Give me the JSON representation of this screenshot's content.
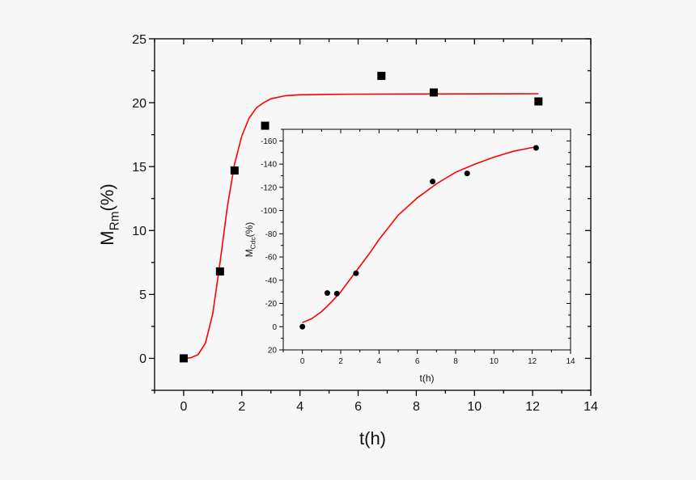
{
  "chart_data": [
    {
      "type": "scatter",
      "xlabel": "t(h)",
      "ylabel_main": "M",
      "ylabel_sub": "Rm",
      "ylabel_suffix": "(%)",
      "xlim": [
        -1,
        14
      ],
      "ylim": [
        -2.5,
        25
      ],
      "xticks": [
        0,
        2,
        4,
        6,
        8,
        10,
        12,
        14
      ],
      "yticks": [
        0,
        5,
        10,
        15,
        20,
        25
      ],
      "marker": "square",
      "points": {
        "x": [
          0,
          1.25,
          1.75,
          2.8,
          6.8,
          8.6,
          12.2
        ],
        "y": [
          0,
          6.8,
          14.7,
          18.2,
          22.1,
          20.8,
          20.1
        ]
      },
      "fit": {
        "x": [
          0,
          0.25,
          0.5,
          0.75,
          1,
          1.25,
          1.5,
          1.75,
          2,
          2.25,
          2.5,
          2.75,
          3,
          3.5,
          4,
          5,
          6,
          8,
          10,
          12.2
        ],
        "y": [
          0,
          0.05,
          0.3,
          1.2,
          3.5,
          7.5,
          11.8,
          15.2,
          17.4,
          18.8,
          19.6,
          20.0,
          20.3,
          20.55,
          20.62,
          20.65,
          20.67,
          20.68,
          20.69,
          20.7
        ]
      },
      "marker_color": "#000000",
      "fit_color": "#ff0000",
      "grid": false
    },
    {
      "type": "scatter",
      "inset": true,
      "xlabel": "t(h)",
      "ylabel_main": "M",
      "ylabel_sub": "Cdc",
      "ylabel_suffix": "(%)",
      "xlim": [
        -1,
        14
      ],
      "ylim": [
        20,
        -170
      ],
      "xticks": [
        0,
        2,
        4,
        6,
        8,
        10,
        12,
        14
      ],
      "yticks": [
        20,
        0,
        -20,
        -40,
        -60,
        -80,
        -100,
        -120,
        -140,
        -160
      ],
      "marker": "circle",
      "points": {
        "x": [
          0,
          1.3,
          1.8,
          2.8,
          6.8,
          8.6,
          12.2
        ],
        "y": [
          0,
          -29,
          -28.5,
          -46,
          -125,
          -132,
          -154
        ]
      },
      "fit": {
        "x": [
          0,
          0.5,
          1,
          1.5,
          2,
          2.5,
          3,
          3.5,
          4,
          5,
          6,
          7,
          8,
          9,
          10,
          11,
          12.2
        ],
        "y": [
          -3.5,
          -7,
          -13,
          -21,
          -30,
          -41,
          -52,
          -63,
          -75,
          -96,
          -111,
          -123,
          -133,
          -140,
          -146,
          -151,
          -155
        ]
      },
      "marker_color": "#000000",
      "fit_color": "#ff0000",
      "grid": false
    }
  ]
}
